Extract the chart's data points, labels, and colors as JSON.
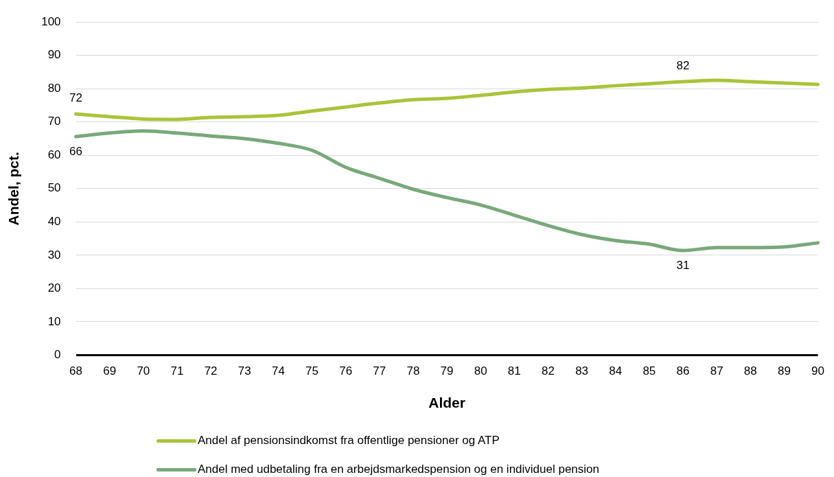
{
  "chart_data": {
    "type": "line",
    "xlabel": "Alder",
    "ylabel": "Andel, pct.",
    "categories": [
      "68",
      "69",
      "70",
      "71",
      "72",
      "73",
      "74",
      "75",
      "76",
      "77",
      "78",
      "79",
      "80",
      "81",
      "82",
      "83",
      "84",
      "85",
      "86",
      "87",
      "88",
      "89",
      "90"
    ],
    "series": [
      {
        "name": "Andel af pensionsindkomst fra offentlige pensioner og ATP",
        "color": "#a8c43a",
        "values": [
          72.4,
          71.6,
          70.9,
          70.8,
          71.4,
          71.6,
          72.0,
          73.3,
          74.5,
          75.7,
          76.7,
          77.1,
          78.0,
          79.0,
          79.8,
          80.2,
          80.9,
          81.5,
          82.1,
          82.5,
          82.1,
          81.7,
          81.3
        ],
        "value_labels": [
          "72",
          null,
          null,
          null,
          null,
          null,
          null,
          null,
          null,
          null,
          null,
          null,
          null,
          null,
          null,
          null,
          null,
          null,
          "82",
          null,
          null,
          null,
          null
        ]
      },
      {
        "name": "Andel med udbetaling fra en arbejdsmarkedspension og en individuel pension",
        "color": "#78a97a",
        "values": [
          65.6,
          66.7,
          67.3,
          66.7,
          65.8,
          65.0,
          63.6,
          61.5,
          56.4,
          53.1,
          49.8,
          47.3,
          45.1,
          42.0,
          38.9,
          36.2,
          34.4,
          33.3,
          31.4,
          32.3,
          32.3,
          32.5,
          33.7
        ],
        "value_labels": [
          "66",
          null,
          null,
          null,
          null,
          null,
          null,
          null,
          null,
          null,
          null,
          null,
          null,
          null,
          null,
          null,
          null,
          null,
          "31",
          null,
          null,
          null,
          null
        ]
      }
    ],
    "ylim": [
      0,
      100
    ],
    "yticks": [
      0,
      10,
      20,
      30,
      40,
      50,
      60,
      70,
      80,
      90,
      100
    ],
    "grid": "y",
    "legend": "bottom",
    "marker": "none",
    "line_style": "solid"
  }
}
